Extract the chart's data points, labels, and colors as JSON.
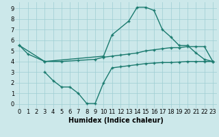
{
  "line1_x": [
    0,
    1,
    3,
    10,
    11,
    13,
    14,
    15,
    16,
    17,
    18,
    19,
    20,
    21,
    22,
    23
  ],
  "line1_y": [
    5.5,
    4.7,
    4.0,
    4.5,
    6.5,
    7.8,
    9.1,
    9.1,
    8.8,
    7.0,
    6.3,
    5.5,
    5.5,
    4.8,
    4.2,
    4.0
  ],
  "line2_x": [
    0,
    3,
    5,
    7,
    9,
    10,
    11,
    12,
    13,
    14,
    15,
    16,
    17,
    18,
    19,
    20,
    21,
    22,
    23
  ],
  "line2_y": [
    5.5,
    4.0,
    4.0,
    4.1,
    4.2,
    4.4,
    4.5,
    4.6,
    4.7,
    4.8,
    5.0,
    5.1,
    5.2,
    5.3,
    5.3,
    5.4,
    5.4,
    5.4,
    4.0
  ],
  "line3_x": [
    3,
    4,
    5,
    6,
    7,
    8,
    9,
    10,
    11,
    12,
    13,
    14,
    15,
    16,
    17,
    18,
    19,
    20,
    21,
    22,
    23
  ],
  "line3_y": [
    3.0,
    2.2,
    1.6,
    1.6,
    1.0,
    0.05,
    0.05,
    2.0,
    3.4,
    3.5,
    3.6,
    3.7,
    3.8,
    3.85,
    3.9,
    3.9,
    3.95,
    4.0,
    4.0,
    4.0,
    4.0
  ],
  "line_color": "#1a7a6e",
  "bg_color": "#cce8ea",
  "grid_color": "#9ecdd2",
  "xlabel": "Humidex (Indice chaleur)",
  "xlim": [
    -0.5,
    23.5
  ],
  "ylim": [
    -0.4,
    9.6
  ],
  "xticks": [
    0,
    1,
    2,
    3,
    4,
    5,
    6,
    7,
    8,
    9,
    10,
    11,
    12,
    13,
    14,
    15,
    16,
    17,
    18,
    19,
    20,
    21,
    22,
    23
  ],
  "yticks": [
    0,
    1,
    2,
    3,
    4,
    5,
    6,
    7,
    8,
    9
  ],
  "xlabel_fontsize": 7,
  "tick_fontsize": 6,
  "marker": "+",
  "markersize": 3,
  "linewidth": 1.0
}
